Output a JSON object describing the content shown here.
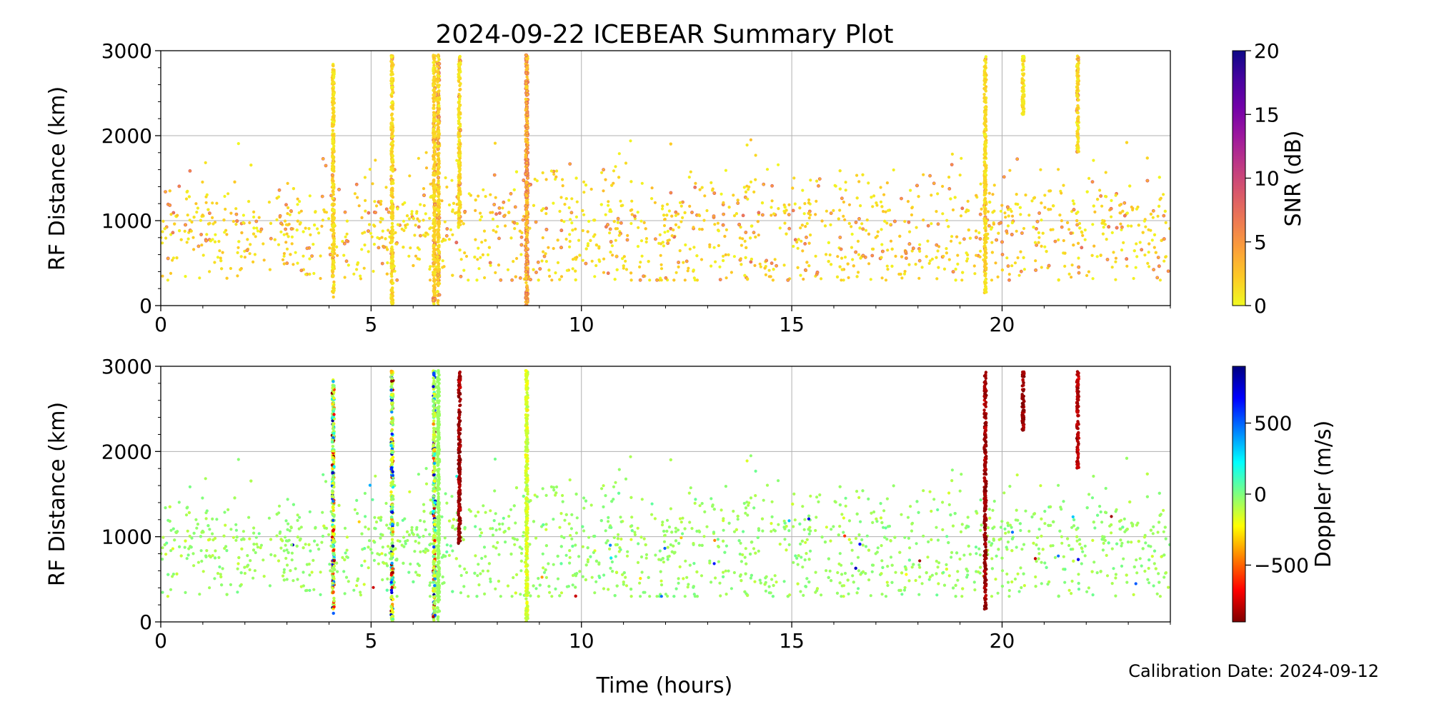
{
  "figure": {
    "title": "2024-09-22 ICEBEAR Summary Plot",
    "xlabel": "Time (hours)",
    "footnote": "Calibration Date: 2024-09-12"
  },
  "chart_data": [
    {
      "type": "scatter",
      "panel": "top",
      "title": "2024-09-22 ICEBEAR Summary Plot",
      "xlabel": "Time (hours)",
      "ylabel": "RF Distance (km)",
      "xlim": [
        0,
        24
      ],
      "ylim": [
        0,
        3000
      ],
      "xticks": [
        0,
        5,
        10,
        15,
        20
      ],
      "yticks": [
        0,
        1000,
        2000,
        3000
      ],
      "grid": true,
      "color_by": "SNR (dB)",
      "colorbar": {
        "label": "SNR (dB)",
        "range": [
          0,
          20
        ],
        "ticks": [
          0,
          5,
          10,
          15,
          20
        ],
        "colormap": "plasma_r",
        "stops": [
          "#f0f921",
          "#fdca26",
          "#fb9f3a",
          "#ed7953",
          "#d8576b",
          "#bd3786",
          "#9c179e",
          "#7201a8",
          "#46039f",
          "#0d0887"
        ]
      },
      "vertical_streaks": [
        {
          "x": 4.1,
          "y_range": [
            100,
            2850
          ],
          "snr": 1.5
        },
        {
          "x": 5.5,
          "y_range": [
            0,
            2950
          ],
          "snr": 1.5
        },
        {
          "x": 6.5,
          "y_range": [
            0,
            2950
          ],
          "snr": 2
        },
        {
          "x": 6.6,
          "y_range": [
            0,
            2950
          ],
          "snr": 2
        },
        {
          "x": 7.1,
          "y_range": [
            900,
            2950
          ],
          "snr": 1.5
        },
        {
          "x": 8.7,
          "y_range": [
            0,
            2950
          ],
          "snr": 3
        },
        {
          "x": 19.6,
          "y_range": [
            150,
            2950
          ],
          "snr": 1.5
        },
        {
          "x": 20.5,
          "y_range": [
            2250,
            2950
          ],
          "snr": 1
        },
        {
          "x": 21.8,
          "y_range": [
            2050,
            2950
          ],
          "snr": 1.5
        }
      ],
      "scatter_cloud": {
        "x_range": [
          0,
          24
        ],
        "y_range": [
          300,
          1950
        ],
        "y_center": 950,
        "snr_range": [
          0,
          7
        ],
        "points": 1800
      }
    },
    {
      "type": "scatter",
      "panel": "bottom",
      "xlabel": "Time (hours)",
      "ylabel": "RF Distance (km)",
      "xlim": [
        0,
        24
      ],
      "ylim": [
        0,
        3000
      ],
      "xticks": [
        0,
        5,
        10,
        15,
        20
      ],
      "yticks": [
        0,
        1000,
        2000,
        3000
      ],
      "grid": true,
      "color_by": "Doppler (m/s)",
      "colorbar": {
        "label": "Doppler (m/s)",
        "range": [
          -900,
          900
        ],
        "ticks": [
          -500,
          0,
          500
        ],
        "tick_labels": [
          "−500",
          "0",
          "500"
        ],
        "colormap": "jet_r",
        "stops": [
          "#7f0000",
          "#ff0000",
          "#ff7f00",
          "#ffff00",
          "#7fff7f",
          "#00ffff",
          "#007fff",
          "#0000ff",
          "#00007f"
        ]
      },
      "vertical_streaks": [
        {
          "x": 4.1,
          "y_range": [
            100,
            2850
          ],
          "doppler": "mixed"
        },
        {
          "x": 5.5,
          "y_range": [
            0,
            2950
          ],
          "doppler": "mixed"
        },
        {
          "x": 6.5,
          "y_range": [
            0,
            2950
          ],
          "doppler": "mixed"
        },
        {
          "x": 7.1,
          "y_range": [
            900,
            2950
          ],
          "doppler": -850
        },
        {
          "x": 8.7,
          "y_range": [
            0,
            2950
          ],
          "doppler": -150
        },
        {
          "x": 19.6,
          "y_range": [
            150,
            2950
          ],
          "doppler": -850
        },
        {
          "x": 20.5,
          "y_range": [
            2250,
            2950
          ],
          "doppler": -850
        },
        {
          "x": 21.8,
          "y_range": [
            1800,
            2950
          ],
          "doppler": -800
        }
      ],
      "scatter_cloud": {
        "x_range": [
          0,
          24
        ],
        "y_range": [
          300,
          1950
        ],
        "y_center": 950,
        "doppler_typical": -50,
        "points": 1800
      }
    }
  ]
}
